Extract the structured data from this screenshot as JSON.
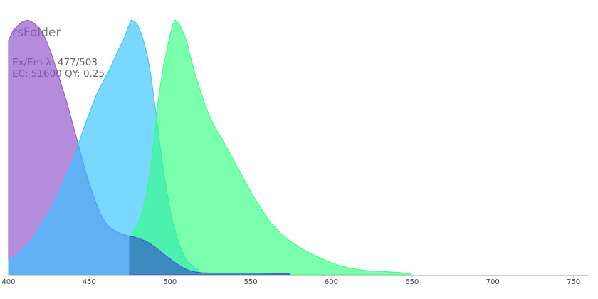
{
  "chart_data": {
    "type": "area",
    "title": "rsFolder",
    "info_line1": "Ex/Em λ: 477/503",
    "info_line2": "EC: 51600  QY: 0.25",
    "xlabel": "",
    "ylabel": "",
    "xlim": [
      400,
      760
    ],
    "ylim": [
      0,
      1
    ],
    "x_ticks": [
      400,
      450,
      500,
      550,
      600,
      650,
      700,
      750
    ],
    "grid": false,
    "series": [
      {
        "key": "excitation_uv",
        "color": "#8e4fc9",
        "points": [
          [
            400,
            0.92
          ],
          [
            403,
            0.96
          ],
          [
            406,
            0.98
          ],
          [
            409,
            0.995
          ],
          [
            412,
            1.0
          ],
          [
            415,
            0.99
          ],
          [
            418,
            0.975
          ],
          [
            421,
            0.95
          ],
          [
            424,
            0.91
          ],
          [
            427,
            0.86
          ],
          [
            430,
            0.8
          ],
          [
            433,
            0.74
          ],
          [
            436,
            0.68
          ],
          [
            439,
            0.61
          ],
          [
            442,
            0.54
          ],
          [
            445,
            0.47
          ],
          [
            448,
            0.4
          ],
          [
            451,
            0.34
          ],
          [
            454,
            0.285
          ],
          [
            457,
            0.24
          ],
          [
            460,
            0.205
          ],
          [
            463,
            0.185
          ],
          [
            466,
            0.172
          ],
          [
            469,
            0.163
          ],
          [
            472,
            0.157
          ],
          [
            475,
            0.152
          ]
        ]
      },
      {
        "key": "excitation_blue",
        "color": "#33c3ff",
        "points": [
          [
            400,
            0.06
          ],
          [
            403,
            0.07
          ],
          [
            406,
            0.085
          ],
          [
            409,
            0.1
          ],
          [
            412,
            0.12
          ],
          [
            415,
            0.145
          ],
          [
            418,
            0.175
          ],
          [
            421,
            0.205
          ],
          [
            424,
            0.235
          ],
          [
            427,
            0.27
          ],
          [
            430,
            0.31
          ],
          [
            433,
            0.35
          ],
          [
            436,
            0.395
          ],
          [
            439,
            0.44
          ],
          [
            442,
            0.49
          ],
          [
            445,
            0.545
          ],
          [
            448,
            0.6
          ],
          [
            451,
            0.65
          ],
          [
            454,
            0.7
          ],
          [
            457,
            0.74
          ],
          [
            460,
            0.775
          ],
          [
            463,
            0.81
          ],
          [
            466,
            0.855
          ],
          [
            469,
            0.895
          ],
          [
            472,
            0.935
          ],
          [
            474,
            0.97
          ],
          [
            476,
            1.0
          ],
          [
            478,
            0.995
          ],
          [
            480,
            0.98
          ],
          [
            482,
            0.95
          ],
          [
            484,
            0.91
          ],
          [
            486,
            0.86
          ],
          [
            488,
            0.79
          ],
          [
            490,
            0.7
          ],
          [
            492,
            0.6
          ],
          [
            494,
            0.5
          ],
          [
            496,
            0.41
          ],
          [
            498,
            0.33
          ],
          [
            500,
            0.26
          ],
          [
            502,
            0.2
          ],
          [
            504,
            0.155
          ],
          [
            506,
            0.115
          ],
          [
            508,
            0.085
          ],
          [
            510,
            0.06
          ],
          [
            512,
            0.045
          ],
          [
            514,
            0.035
          ],
          [
            516,
            0.025
          ],
          [
            518,
            0.02
          ]
        ]
      },
      {
        "key": "emission",
        "color": "#33ff80",
        "points": [
          [
            475,
            0.152
          ],
          [
            477,
            0.17
          ],
          [
            480,
            0.2
          ],
          [
            483,
            0.25
          ],
          [
            486,
            0.33
          ],
          [
            488,
            0.42
          ],
          [
            490,
            0.53
          ],
          [
            492,
            0.65
          ],
          [
            494,
            0.74
          ],
          [
            496,
            0.82
          ],
          [
            498,
            0.88
          ],
          [
            500,
            0.94
          ],
          [
            502,
            0.985
          ],
          [
            503,
            1.0
          ],
          [
            505,
            0.99
          ],
          [
            507,
            0.97
          ],
          [
            509,
            0.94
          ],
          [
            511,
            0.9
          ],
          [
            513,
            0.85
          ],
          [
            515,
            0.8
          ],
          [
            518,
            0.74
          ],
          [
            521,
            0.68
          ],
          [
            524,
            0.63
          ],
          [
            527,
            0.59
          ],
          [
            530,
            0.555
          ],
          [
            533,
            0.525
          ],
          [
            536,
            0.49
          ],
          [
            539,
            0.455
          ],
          [
            542,
            0.42
          ],
          [
            545,
            0.385
          ],
          [
            548,
            0.35
          ],
          [
            551,
            0.315
          ],
          [
            554,
            0.285
          ],
          [
            557,
            0.255
          ],
          [
            560,
            0.225
          ],
          [
            563,
            0.2
          ],
          [
            566,
            0.18
          ],
          [
            569,
            0.16
          ],
          [
            572,
            0.145
          ],
          [
            575,
            0.13
          ],
          [
            578,
            0.118
          ],
          [
            581,
            0.105
          ],
          [
            584,
            0.095
          ],
          [
            587,
            0.085
          ],
          [
            590,
            0.075
          ],
          [
            593,
            0.067
          ],
          [
            596,
            0.058
          ],
          [
            599,
            0.05
          ],
          [
            602,
            0.043
          ],
          [
            605,
            0.037
          ],
          [
            608,
            0.032
          ],
          [
            611,
            0.027
          ],
          [
            614,
            0.024
          ],
          [
            617,
            0.021
          ],
          [
            620,
            0.018
          ],
          [
            623,
            0.016
          ],
          [
            626,
            0.015
          ],
          [
            629,
            0.014
          ],
          [
            632,
            0.013
          ],
          [
            635,
            0.012
          ],
          [
            638,
            0.011
          ],
          [
            641,
            0.01
          ],
          [
            644,
            0.008
          ],
          [
            647,
            0.006
          ],
          [
            649,
            0.005
          ]
        ]
      },
      {
        "key": "emission_violet",
        "color": "#3355cc",
        "points": [
          [
            475,
            0.152
          ],
          [
            478,
            0.148
          ],
          [
            481,
            0.142
          ],
          [
            484,
            0.135
          ],
          [
            487,
            0.125
          ],
          [
            490,
            0.112
          ],
          [
            493,
            0.097
          ],
          [
            496,
            0.082
          ],
          [
            499,
            0.067
          ],
          [
            502,
            0.053
          ],
          [
            505,
            0.04
          ],
          [
            508,
            0.028
          ],
          [
            511,
            0.019
          ],
          [
            514,
            0.013
          ],
          [
            517,
            0.01
          ],
          [
            520,
            0.008
          ],
          [
            525,
            0.007
          ],
          [
            530,
            0.007
          ],
          [
            540,
            0.007
          ],
          [
            550,
            0.007
          ],
          [
            560,
            0.006
          ],
          [
            565,
            0.005
          ],
          [
            570,
            0.005
          ],
          [
            574,
            0.004
          ]
        ]
      }
    ]
  }
}
